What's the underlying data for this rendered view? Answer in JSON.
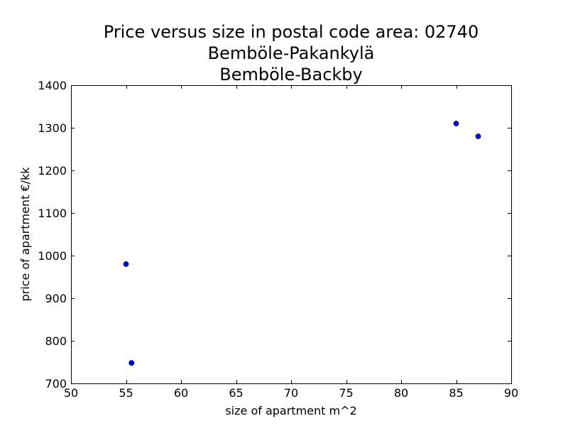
{
  "chart_data": {
    "type": "scatter",
    "title_lines": [
      "Price versus size in postal code area: 02740",
      "Bemböle-Pakankylä",
      "Bemböle-Backby"
    ],
    "xlabel": "size of apartment m^2",
    "ylabel": "price of apartment €/kk",
    "xlim": [
      50,
      90
    ],
    "ylim": [
      700,
      1400
    ],
    "x_ticks": [
      50,
      55,
      60,
      65,
      70,
      75,
      80,
      85,
      90
    ],
    "y_ticks": [
      700,
      800,
      900,
      1000,
      1100,
      1200,
      1300,
      1400
    ],
    "grid": false,
    "legend": "none",
    "marker_color": "#0000ff",
    "series": [
      {
        "x": [
          55.0,
          55.5,
          85.0,
          87.0
        ],
        "y": [
          980,
          748,
          1310,
          1280
        ]
      }
    ]
  }
}
